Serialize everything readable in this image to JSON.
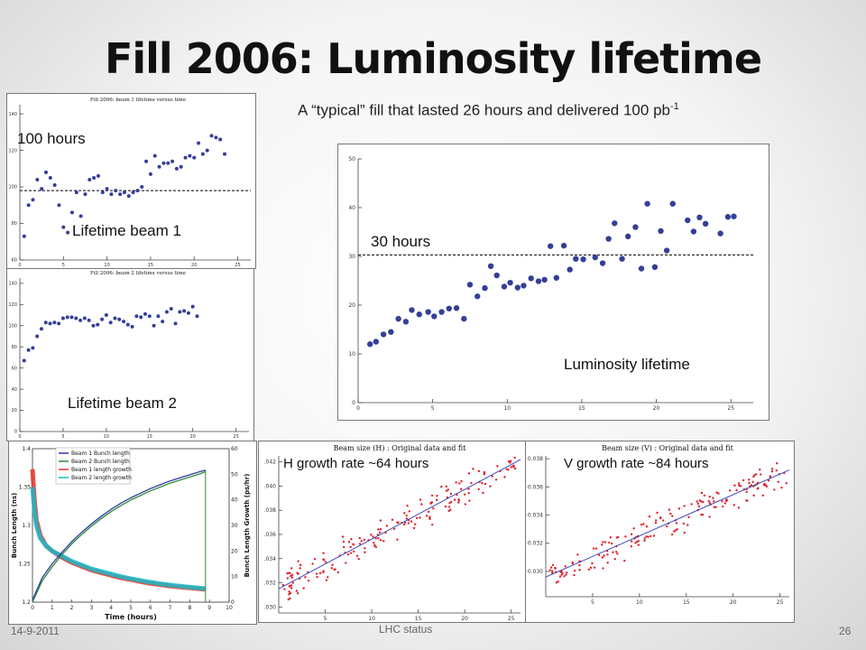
{
  "slide": {
    "title": "Fill 2006: Luminosity lifetime",
    "subtitle_main": "A “typical” fill that lasted 26 hours and delivered 100 pb",
    "subtitle_sup": "-1",
    "footer_date": "14-9-2011",
    "footer_center": "LHC status",
    "page_number": "26"
  },
  "labels": {
    "beam1_ref": "100 hours",
    "beam1": "Lifetime beam 1",
    "beam2": "Lifetime beam 2",
    "lumi_ref": "30 hours",
    "lumi": "Luminosity lifetime",
    "h_growth": "H growth rate ~64 hours",
    "v_growth": "V growth rate ~84 hours"
  },
  "chart_data": [
    {
      "id": "beam1",
      "type": "scatter",
      "title": "Fill 2006: beam 1 lifetime versus time",
      "xlim": [
        0,
        26.5
      ],
      "ylim": [
        60,
        145
      ],
      "xticks": [
        0,
        5,
        10,
        15,
        20,
        25
      ],
      "yticks": [
        60,
        80,
        100,
        120,
        140
      ],
      "color": "#343f96",
      "ref_line": 98,
      "points": [
        [
          0.5,
          73
        ],
        [
          1,
          90
        ],
        [
          1.5,
          93
        ],
        [
          2,
          104
        ],
        [
          2.5,
          99
        ],
        [
          3,
          108
        ],
        [
          3.5,
          105
        ],
        [
          4,
          101
        ],
        [
          4.5,
          90
        ],
        [
          5,
          78
        ],
        [
          5.5,
          75
        ],
        [
          6,
          86
        ],
        [
          6.5,
          97
        ],
        [
          7,
          84
        ],
        [
          7.5,
          96
        ],
        [
          8,
          104
        ],
        [
          8.5,
          105
        ],
        [
          9,
          106
        ],
        [
          9.5,
          97
        ],
        [
          10,
          99
        ],
        [
          10.5,
          96
        ],
        [
          11,
          98
        ],
        [
          11.5,
          96
        ],
        [
          12,
          97
        ],
        [
          12.5,
          95
        ],
        [
          13,
          97
        ],
        [
          13.5,
          98
        ],
        [
          14,
          100
        ],
        [
          14.5,
          114
        ],
        [
          15,
          107
        ],
        [
          15.5,
          117
        ],
        [
          16,
          111
        ],
        [
          16.5,
          113
        ],
        [
          17,
          113
        ],
        [
          17.5,
          114
        ],
        [
          18,
          110
        ],
        [
          18.5,
          111
        ],
        [
          19,
          116
        ],
        [
          19.5,
          117
        ],
        [
          20,
          116
        ],
        [
          20.5,
          124
        ],
        [
          21,
          118
        ],
        [
          21.5,
          120
        ],
        [
          22,
          128
        ],
        [
          22.5,
          127
        ],
        [
          23,
          126
        ],
        [
          23.5,
          118
        ]
      ]
    },
    {
      "id": "beam2",
      "type": "scatter",
      "title": "Fill 2006: beam 2 lifetime versus time",
      "xlim": [
        0,
        26.5
      ],
      "ylim": [
        0,
        145
      ],
      "xticks": [
        0,
        5,
        10,
        15,
        20,
        25
      ],
      "yticks": [
        0,
        20,
        40,
        60,
        80,
        100,
        120,
        140
      ],
      "color": "#343f96",
      "points": [
        [
          0.5,
          67
        ],
        [
          1,
          77
        ],
        [
          1.5,
          79
        ],
        [
          2,
          90
        ],
        [
          2.5,
          97
        ],
        [
          3,
          103
        ],
        [
          3.5,
          102
        ],
        [
          4,
          103
        ],
        [
          4.5,
          102
        ],
        [
          5,
          107
        ],
        [
          5.5,
          108
        ],
        [
          6,
          108
        ],
        [
          6.5,
          107
        ],
        [
          7,
          105
        ],
        [
          7.5,
          107
        ],
        [
          8,
          105
        ],
        [
          8.5,
          100
        ],
        [
          9,
          101
        ],
        [
          9.5,
          106
        ],
        [
          10,
          110
        ],
        [
          10.5,
          103
        ],
        [
          11,
          107
        ],
        [
          11.5,
          106
        ],
        [
          12,
          104
        ],
        [
          12.5,
          101
        ],
        [
          13,
          99
        ],
        [
          13.5,
          109
        ],
        [
          14,
          108
        ],
        [
          14.5,
          111
        ],
        [
          15,
          109
        ],
        [
          15.5,
          100
        ],
        [
          16,
          109
        ],
        [
          16.5,
          104
        ],
        [
          17,
          113
        ],
        [
          17.5,
          116
        ],
        [
          18,
          102
        ],
        [
          18.5,
          113
        ],
        [
          19,
          114
        ],
        [
          19.5,
          112
        ],
        [
          20,
          118
        ],
        [
          20.5,
          109
        ]
      ]
    },
    {
      "id": "lumi",
      "type": "scatter",
      "title": "",
      "xlim": [
        0,
        26.5
      ],
      "ylim": [
        0,
        50
      ],
      "xticks": [
        0,
        5,
        10,
        15,
        20,
        25
      ],
      "yticks": [
        0,
        10,
        20,
        30,
        40,
        50
      ],
      "color": "#343f96",
      "ref_line": 30.3,
      "points": [
        [
          0.8,
          12
        ],
        [
          1.2,
          12.5
        ],
        [
          1.7,
          14
        ],
        [
          2.2,
          14.5
        ],
        [
          2.7,
          17.2
        ],
        [
          3.2,
          16.6
        ],
        [
          3.6,
          19
        ],
        [
          4.1,
          18.1
        ],
        [
          4.7,
          18.6
        ],
        [
          5.1,
          17.7
        ],
        [
          5.6,
          18.6
        ],
        [
          6.1,
          19.3
        ],
        [
          6.6,
          19.4
        ],
        [
          7.1,
          17.2
        ],
        [
          7.5,
          24.2
        ],
        [
          8,
          21.8
        ],
        [
          8.5,
          23.5
        ],
        [
          8.9,
          28
        ],
        [
          9.3,
          26.1
        ],
        [
          9.8,
          23.8
        ],
        [
          10.2,
          24.6
        ],
        [
          10.7,
          23.6
        ],
        [
          11.1,
          24
        ],
        [
          11.6,
          25.5
        ],
        [
          12.1,
          24.9
        ],
        [
          12.5,
          25.2
        ],
        [
          12.9,
          32.1
        ],
        [
          13.3,
          25.6
        ],
        [
          13.8,
          32.2
        ],
        [
          14.2,
          27.3
        ],
        [
          14.6,
          29.5
        ],
        [
          15.1,
          29.4
        ],
        [
          15.9,
          29.8
        ],
        [
          16.4,
          28.6
        ],
        [
          16.8,
          33.6
        ],
        [
          17.2,
          36.8
        ],
        [
          17.7,
          29.5
        ],
        [
          18.1,
          34.1
        ],
        [
          18.6,
          36
        ],
        [
          19,
          27.5
        ],
        [
          19.4,
          40.8
        ],
        [
          19.9,
          27.8
        ],
        [
          20.3,
          35.2
        ],
        [
          20.7,
          31.2
        ],
        [
          21.1,
          40.8
        ],
        [
          22.1,
          37.4
        ],
        [
          22.5,
          35.1
        ],
        [
          22.9,
          38
        ],
        [
          23.3,
          36.7
        ],
        [
          24.3,
          34.7
        ],
        [
          24.8,
          38.1
        ],
        [
          25.2,
          38.2
        ]
      ]
    },
    {
      "id": "bunch",
      "type": "line",
      "title": "",
      "xlabel": "Time (hours)",
      "ylabel": "Bunch Length (ns)",
      "y2label": "Bunch Length Growth (ps/hr)",
      "xlim": [
        0,
        10
      ],
      "ylim": [
        1.2,
        1.4
      ],
      "y2lim": [
        0,
        60
      ],
      "xticks": [
        0,
        1,
        2,
        3,
        4,
        5,
        6,
        7,
        8,
        9,
        10
      ],
      "yticks": [
        1.2,
        1.25,
        1.3,
        1.35,
        1.4
      ],
      "y2ticks": [
        0,
        10,
        20,
        30,
        40,
        50,
        60
      ],
      "series": [
        {
          "name": "Beam 1 Bunch length",
          "color": "#2f3ba3",
          "axis": "left",
          "x": [
            0,
            0.5,
            1,
            1.5,
            2,
            2.5,
            3,
            3.5,
            4,
            4.5,
            5,
            5.5,
            6,
            6.5,
            7,
            7.5,
            8,
            8.5,
            8.8
          ],
          "y": [
            1.203,
            1.232,
            1.25,
            1.265,
            1.279,
            1.291,
            1.302,
            1.312,
            1.321,
            1.329,
            1.336,
            1.342,
            1.348,
            1.353,
            1.358,
            1.362,
            1.366,
            1.37,
            1.372
          ]
        },
        {
          "name": "Beam 2 Bunch length",
          "color": "#2e8b3a",
          "axis": "left",
          "x": [
            0,
            0.5,
            1,
            1.5,
            2,
            2.5,
            3,
            3.5,
            4,
            4.5,
            5,
            5.5,
            6,
            6.5,
            7,
            7.5,
            8,
            8.5,
            8.8
          ],
          "y": [
            1.2,
            1.228,
            1.246,
            1.262,
            1.276,
            1.288,
            1.299,
            1.309,
            1.318,
            1.326,
            1.333,
            1.339,
            1.345,
            1.35,
            1.355,
            1.359,
            1.363,
            1.367,
            1.37
          ]
        },
        {
          "name": "Beam 1 length growth",
          "color": "#e8302a",
          "axis": "right",
          "x": [
            0,
            0.1,
            0.2,
            0.4,
            0.7,
            1,
            1.5,
            2,
            2.5,
            3,
            3.5,
            4,
            4.5,
            5,
            5.5,
            6,
            6.5,
            7,
            7.5,
            8,
            8.5,
            8.8
          ],
          "y": [
            52,
            40,
            32,
            26,
            22,
            20,
            17.5,
            15.5,
            14,
            12.5,
            11.5,
            10.5,
            9.5,
            8.8,
            8,
            7.3,
            6.8,
            6.3,
            5.9,
            5.6,
            5.2,
            5
          ]
        },
        {
          "name": "Beam 2 length growth",
          "color": "#19b9c8",
          "axis": "right",
          "x": [
            0,
            0.1,
            0.2,
            0.4,
            0.7,
            1,
            1.5,
            2,
            2.5,
            3,
            3.5,
            4,
            4.5,
            5,
            5.5,
            6,
            6.5,
            7,
            7.5,
            8,
            8.5,
            8.8
          ],
          "y": [
            45,
            36,
            30,
            25,
            22,
            20,
            18,
            16,
            14.5,
            13,
            12,
            11,
            10,
            9.2,
            8.5,
            7.8,
            7.2,
            6.7,
            6.3,
            5.9,
            5.5,
            5.3
          ]
        }
      ]
    },
    {
      "id": "hsize",
      "type": "scatter",
      "title": "Beam size (H) : Original data and fit",
      "xlim": [
        0,
        26
      ],
      "ylim": [
        0.0295,
        0.0425
      ],
      "xticks": [
        5,
        10,
        15,
        20,
        25
      ],
      "yticks": [
        0.03,
        0.032,
        0.034,
        0.036,
        0.038,
        0.04,
        0.042
      ],
      "ytick_labels": [
        ".030",
        ".032",
        ".034",
        ".036",
        ".038",
        ".040",
        ".042"
      ],
      "color": "#e0202a",
      "fit_color": "#3f49b8",
      "fit": [
        [
          0,
          0.0315
        ],
        [
          26,
          0.0422
        ]
      ]
    },
    {
      "id": "vsize",
      "type": "scatter",
      "title": "Beam size (V) : Original data and fit",
      "xlim": [
        0,
        26
      ],
      "ylim": [
        0.0282,
        0.0382
      ],
      "xticks": [
        5,
        10,
        15,
        20,
        25
      ],
      "yticks": [
        0.03,
        0.032,
        0.034,
        0.036,
        0.038
      ],
      "ytick_labels": [
        "0.030",
        "0.032",
        "0.034",
        "0.036",
        "0.038"
      ],
      "color": "#e0202a",
      "fit_color": "#3f49b8",
      "fit": [
        [
          0,
          0.0296
        ],
        [
          26,
          0.0372
        ]
      ]
    }
  ]
}
